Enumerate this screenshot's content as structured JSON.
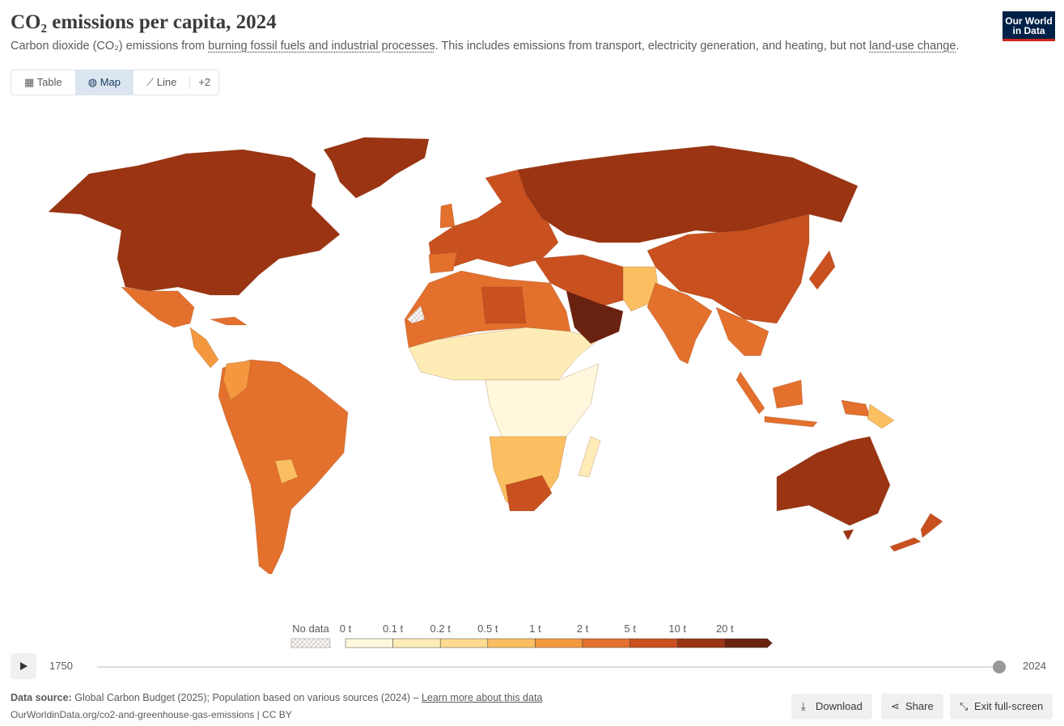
{
  "header": {
    "title": "CO₂ emissions per capita, 2024",
    "subtitle_parts": [
      "Carbon dioxide (CO₂) emissions from ",
      "burning fossil fuels and industrial processes",
      ". This includes emissions from transport, electricity generation, and heating, but not ",
      "land-use change",
      "."
    ],
    "logo": [
      "Our World",
      "in Data"
    ]
  },
  "tabs": [
    "Table",
    "Map",
    "Line",
    "+2"
  ],
  "legend": {
    "no_data": "No data",
    "ticks": [
      "0 t",
      "0.1 t",
      "0.2 t",
      "0.5 t",
      "1 t",
      "2 t",
      "5 t",
      "10 t",
      "20 t"
    ],
    "colors": [
      "#fff8dc",
      "#feecb6",
      "#fdda90",
      "#fbbf62",
      "#f3983f",
      "#e3702c",
      "#c9501f",
      "#9a3412",
      "#6a2210"
    ]
  },
  "timeline": {
    "start": "1750",
    "end": "2024"
  },
  "footer": {
    "source_label": "Data source:",
    "source": "Global Carbon Budget (2025); Population based on various sources (2024) – ",
    "learn_more": "Learn more about this data",
    "url": "OurWorldinData.org/co2-and-greenhouse-gas-emissions | CC BY"
  },
  "actions": [
    "Download",
    "Share",
    "Exit full-screen"
  ]
}
